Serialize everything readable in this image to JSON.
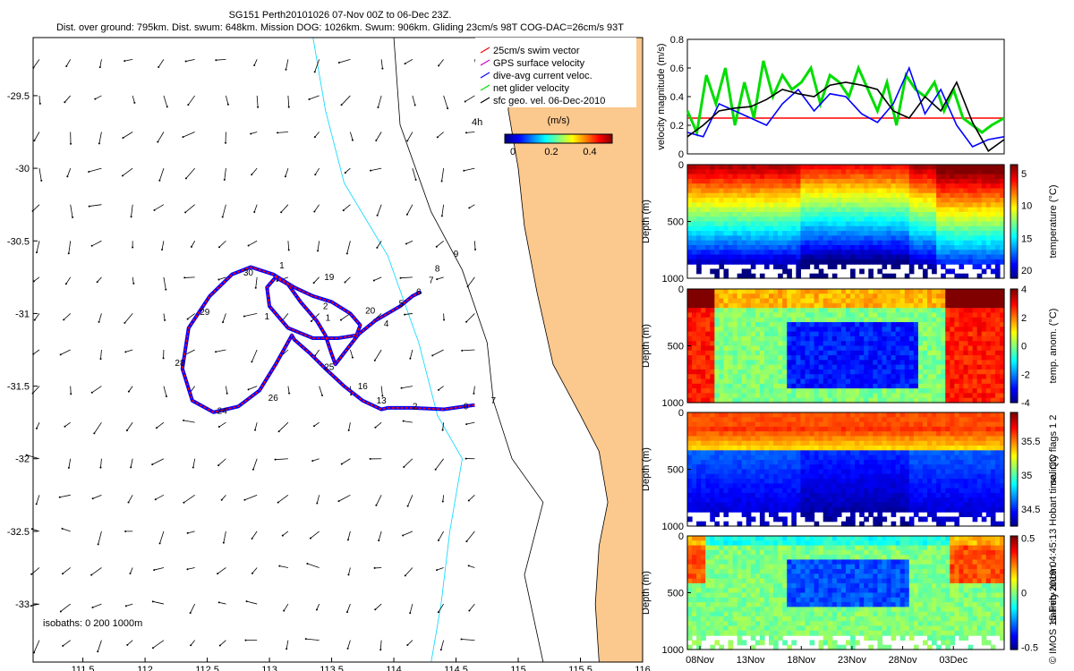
{
  "header": {
    "line1": "SG151 Perth20101026 07-Nov 00Z to 06-Dec 23Z.",
    "line2": "Dist. over ground: 795km. Dist. swum: 648km. Mission DOG: 1026km. Swum: 906km. Gliding 23cm/s 98T COG-DAC=26cm/s 93T"
  },
  "credit": "© IMOS 15-Feb-2019 04:45:13 Hobart time. QC flags 1  2",
  "colors": {
    "land": "#fbc88e",
    "track_red": "#ff0000",
    "track_blue": "#0000ff",
    "green": "#00dd00",
    "cyan": "#00d8ff",
    "black": "#000000"
  },
  "chart_data": [
    {
      "type": "scatter",
      "name": "glider-track-map",
      "xlim": [
        111.1,
        116.0
      ],
      "ylim": [
        -33.4,
        -29.1
      ],
      "xticks": [
        "111.5",
        "112",
        "112.5",
        "113",
        "113.5",
        "114",
        "114.5",
        "115",
        "115.5",
        "116"
      ],
      "xtick_values": [
        111.5,
        112,
        112.5,
        113,
        113.5,
        114,
        114.5,
        115,
        115.5,
        116
      ],
      "yticks": [
        "-29.5",
        "-30",
        "-30.5",
        "-31",
        "-31.5",
        "-32",
        "-32.5",
        "-33"
      ],
      "ytick_values": [
        -29.5,
        -30,
        -30.5,
        -31,
        -31.5,
        -32,
        -32.5,
        -33
      ],
      "legend": [
        {
          "label": "25cm/s swim vector",
          "color": "#ff0000"
        },
        {
          "label": "GPS surface velocity",
          "color": "#cc00cc"
        },
        {
          "label": "dive-avg current veloc.",
          "color": "#0000ff"
        },
        {
          "label": "net glider velocity",
          "color": "#00dd00"
        },
        {
          "label": "sfc geo. vel. 06-Dec-2010",
          "color": "#000000"
        }
      ],
      "legend_note": "4h",
      "colorbar": {
        "label": "(m/s)",
        "ticks": [
          "0",
          "0.2",
          "0.4"
        ],
        "range": [
          0,
          0.5
        ]
      },
      "isobaths_label": "isobaths: 0   200  1000m",
      "track": [
        [
          114.65,
          -31.63
        ],
        [
          114.4,
          -31.66
        ],
        [
          114.15,
          -31.65
        ],
        [
          113.95,
          -31.65
        ],
        [
          113.9,
          -31.66
        ],
        [
          113.75,
          -31.6
        ],
        [
          113.6,
          -31.5
        ],
        [
          113.45,
          -31.38
        ],
        [
          113.32,
          -31.27
        ],
        [
          113.2,
          -31.18
        ],
        [
          113.18,
          -31.15
        ],
        [
          113.05,
          -31.35
        ],
        [
          112.92,
          -31.53
        ],
        [
          112.75,
          -31.64
        ],
        [
          112.55,
          -31.68
        ],
        [
          112.38,
          -31.6
        ],
        [
          112.3,
          -31.38
        ],
        [
          112.35,
          -31.1
        ],
        [
          112.52,
          -30.88
        ],
        [
          112.7,
          -30.73
        ],
        [
          112.85,
          -30.68
        ],
        [
          113.03,
          -30.73
        ],
        [
          113.2,
          -30.82
        ],
        [
          113.35,
          -30.88
        ],
        [
          113.5,
          -30.92
        ],
        [
          113.65,
          -31.0
        ],
        [
          113.73,
          -31.08
        ],
        [
          113.7,
          -31.15
        ],
        [
          113.55,
          -31.17
        ],
        [
          113.35,
          -31.17
        ],
        [
          113.15,
          -31.1
        ],
        [
          113.0,
          -30.95
        ],
        [
          112.98,
          -30.82
        ],
        [
          113.05,
          -30.75
        ],
        [
          113.15,
          -30.8
        ],
        [
          113.25,
          -30.92
        ],
        [
          113.38,
          -31.05
        ],
        [
          113.45,
          -31.15
        ],
        [
          113.5,
          -31.28
        ],
        [
          113.53,
          -31.35
        ],
        [
          113.62,
          -31.25
        ],
        [
          113.72,
          -31.14
        ],
        [
          113.85,
          -31.05
        ],
        [
          113.95,
          -31.0
        ],
        [
          114.05,
          -30.95
        ],
        [
          114.15,
          -30.88
        ],
        [
          114.22,
          -30.85
        ]
      ],
      "day_labels": [
        {
          "t": "30",
          "x": 112.83,
          "y": -30.74
        },
        {
          "t": "1",
          "x": 113.1,
          "y": -30.69
        },
        {
          "t": "19",
          "x": 113.48,
          "y": -30.77
        },
        {
          "t": "29",
          "x": 112.48,
          "y": -31.01
        },
        {
          "t": "2",
          "x": 113.45,
          "y": -30.97
        },
        {
          "t": "1",
          "x": 113.47,
          "y": -31.05
        },
        {
          "t": "1",
          "x": 112.98,
          "y": -31.04
        },
        {
          "t": "20",
          "x": 113.81,
          "y": -31.0
        },
        {
          "t": "4",
          "x": 113.94,
          "y": -31.09
        },
        {
          "t": "5",
          "x": 114.06,
          "y": -30.95
        },
        {
          "t": "6",
          "x": 114.2,
          "y": -30.87
        },
        {
          "t": "7",
          "x": 114.3,
          "y": -30.79
        },
        {
          "t": "8",
          "x": 114.35,
          "y": -30.71
        },
        {
          "t": "9",
          "x": 114.5,
          "y": -30.61
        },
        {
          "t": "28",
          "x": 112.28,
          "y": -31.36
        },
        {
          "t": "25",
          "x": 113.48,
          "y": -31.39
        },
        {
          "t": "16",
          "x": 113.75,
          "y": -31.52
        },
        {
          "t": "26",
          "x": 113.03,
          "y": -31.6
        },
        {
          "t": "24",
          "x": 112.62,
          "y": -31.69
        },
        {
          "t": "13",
          "x": 113.9,
          "y": -31.62
        },
        {
          "t": "2",
          "x": 114.17,
          "y": -31.66
        },
        {
          "t": "0",
          "x": 114.58,
          "y": -31.66
        },
        {
          "t": "7",
          "x": 114.8,
          "y": -31.62
        }
      ]
    },
    {
      "type": "line",
      "name": "velocity-magnitude",
      "ylabel": "velocity magnitude (m/s)",
      "ylim": [
        0,
        0.8
      ],
      "yticks": [
        "0",
        "0.2",
        "0.4",
        "0.6",
        "0.8"
      ],
      "series": [
        {
          "name": "swim vector",
          "color": "#ff0000",
          "x": [
            0,
            1
          ],
          "values": [
            0.25,
            0.25
          ]
        },
        {
          "name": "net glider velocity",
          "color": "#00dd00",
          "x": [
            0,
            0.03,
            0.06,
            0.09,
            0.12,
            0.15,
            0.18,
            0.21,
            0.24,
            0.27,
            0.3,
            0.33,
            0.36,
            0.39,
            0.42,
            0.45,
            0.48,
            0.51,
            0.54,
            0.57,
            0.6,
            0.63,
            0.66,
            0.69,
            0.72,
            0.75,
            0.78,
            0.81,
            0.84,
            0.87,
            0.9,
            0.93,
            0.96,
            1.0
          ],
          "values": [
            0.3,
            0.15,
            0.55,
            0.35,
            0.6,
            0.2,
            0.5,
            0.25,
            0.65,
            0.4,
            0.55,
            0.45,
            0.5,
            0.6,
            0.35,
            0.55,
            0.5,
            0.4,
            0.6,
            0.45,
            0.3,
            0.5,
            0.2,
            0.55,
            0.45,
            0.4,
            0.5,
            0.3,
            0.45,
            0.25,
            0.2,
            0.15,
            0.2,
            0.25
          ]
        },
        {
          "name": "dive-avg current",
          "color": "#0000ff",
          "x": [
            0,
            0.05,
            0.1,
            0.15,
            0.2,
            0.25,
            0.3,
            0.35,
            0.4,
            0.45,
            0.5,
            0.55,
            0.6,
            0.65,
            0.7,
            0.75,
            0.8,
            0.85,
            0.9,
            0.95,
            1.0
          ],
          "values": [
            0.15,
            0.12,
            0.35,
            0.3,
            0.25,
            0.2,
            0.35,
            0.45,
            0.3,
            0.42,
            0.4,
            0.28,
            0.22,
            0.35,
            0.6,
            0.28,
            0.45,
            0.2,
            0.05,
            0.1,
            0.12
          ]
        },
        {
          "name": "surface geostrophic",
          "color": "#000000",
          "x": [
            0,
            0.05,
            0.1,
            0.15,
            0.2,
            0.25,
            0.3,
            0.35,
            0.4,
            0.45,
            0.5,
            0.55,
            0.6,
            0.65,
            0.7,
            0.75,
            0.8,
            0.85,
            0.9,
            0.95,
            1.0
          ],
          "values": [
            0.12,
            0.2,
            0.3,
            0.32,
            0.33,
            0.38,
            0.45,
            0.42,
            0.4,
            0.48,
            0.5,
            0.48,
            0.45,
            0.3,
            0.25,
            0.4,
            0.3,
            0.5,
            0.22,
            0.02,
            0.1
          ]
        }
      ]
    },
    {
      "type": "heatmap",
      "name": "temperature-section",
      "ylabel": "Depth (m)",
      "yticks": [
        "0",
        "500",
        "1000"
      ],
      "cbar_label": "temperature (°C)",
      "cbar_ticks": [
        "5",
        "10",
        "15",
        "20"
      ],
      "cmap": "jet"
    },
    {
      "type": "heatmap",
      "name": "temp-anomaly-section",
      "ylabel": "Depth (m)",
      "yticks": [
        "0",
        "500",
        "1000"
      ],
      "cbar_label": "temp. anom. (°C)",
      "cbar_ticks": [
        "4",
        "2",
        "0",
        "-2",
        "-4"
      ],
      "cmap": "jet"
    },
    {
      "type": "heatmap",
      "name": "salinity-section",
      "ylabel": "Depth (m)",
      "yticks": [
        "0",
        "500",
        "1000"
      ],
      "cbar_label": "salinity",
      "cbar_ticks": [
        "35.5",
        "35",
        "34.5"
      ],
      "cmap": "jet"
    },
    {
      "type": "heatmap",
      "name": "salinity-anomaly-section",
      "ylabel": "Depth (m)",
      "yticks": [
        "0",
        "500",
        "1000"
      ],
      "cbar_label": "salinity anom.",
      "cbar_ticks": [
        "0.5",
        "0",
        "-0.5"
      ],
      "cmap": "jet",
      "xticks": [
        "08Nov",
        "13Nov",
        "18Nov",
        "23Nov",
        "28Nov",
        "03Dec"
      ]
    }
  ]
}
